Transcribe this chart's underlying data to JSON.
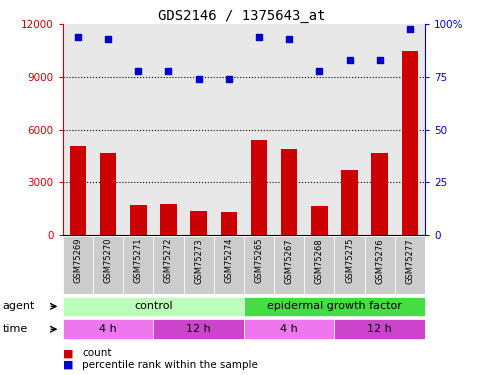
{
  "title": "GDS2146 / 1375643_at",
  "samples": [
    "GSM75269",
    "GSM75270",
    "GSM75271",
    "GSM75272",
    "GSM75273",
    "GSM75274",
    "GSM75265",
    "GSM75267",
    "GSM75268",
    "GSM75275",
    "GSM75276",
    "GSM75277"
  ],
  "bar_values": [
    5100,
    4700,
    1700,
    1800,
    1400,
    1300,
    5400,
    4900,
    1650,
    3700,
    4700,
    10500
  ],
  "dot_values": [
    94,
    93,
    78,
    78,
    74,
    74,
    94,
    93,
    78,
    83,
    83,
    98
  ],
  "bar_color": "#cc0000",
  "dot_color": "#0000cc",
  "ylim_left": [
    0,
    12000
  ],
  "ylim_right": [
    0,
    100
  ],
  "yticks_left": [
    0,
    3000,
    6000,
    9000,
    12000
  ],
  "yticks_right": [
    0,
    25,
    50,
    75,
    100
  ],
  "ytick_labels_right": [
    "0",
    "25",
    "50",
    "75",
    "100%"
  ],
  "agent_label": "agent",
  "time_label": "time",
  "agent_groups": [
    {
      "label": "control",
      "start": 0,
      "end": 6,
      "color": "#bbffbb"
    },
    {
      "label": "epidermal growth factor",
      "start": 6,
      "end": 12,
      "color": "#44dd44"
    }
  ],
  "time_groups": [
    {
      "label": "4 h",
      "start": 0,
      "end": 3,
      "color": "#ee77ee"
    },
    {
      "label": "12 h",
      "start": 3,
      "end": 6,
      "color": "#cc44cc"
    },
    {
      "label": "4 h",
      "start": 6,
      "end": 9,
      "color": "#ee77ee"
    },
    {
      "label": "12 h",
      "start": 9,
      "end": 12,
      "color": "#cc44cc"
    }
  ],
  "legend_count_color": "#cc0000",
  "legend_dot_color": "#0000cc",
  "plot_bg_color": "#e8e8e8",
  "title_fontsize": 10,
  "tick_fontsize": 7.5,
  "sample_fontsize": 6,
  "row_fontsize": 8
}
